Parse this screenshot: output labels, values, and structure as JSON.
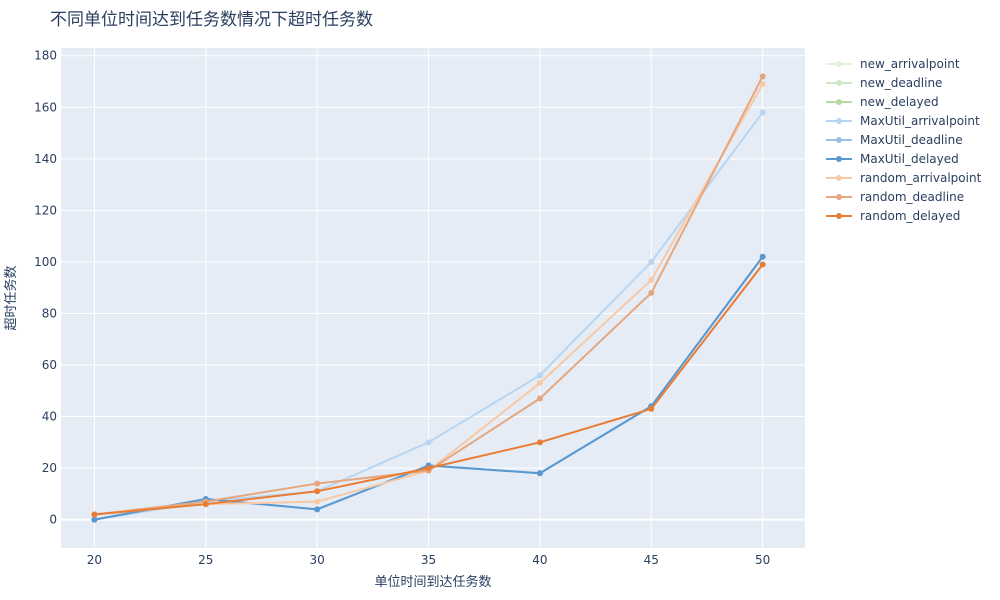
{
  "chart_data": {
    "type": "line",
    "title": "不同单位时间达到任务数情况下超时任务数",
    "xlabel": "单位时间到达任务数",
    "ylabel": "超时任务数",
    "x": [
      20,
      25,
      30,
      35,
      40,
      45,
      50
    ],
    "xticks": [
      "20",
      "25",
      "30",
      "35",
      "40",
      "45",
      "50"
    ],
    "yticks": [
      "0",
      "20",
      "40",
      "60",
      "80",
      "100",
      "120",
      "140",
      "160",
      "180"
    ],
    "xlim": [
      18.5,
      51.9
    ],
    "ylim": [
      -11,
      183
    ],
    "grid": true,
    "legend_position": "right",
    "plot_background": "#e5ecf6",
    "series": [
      {
        "name": "new_arrivalpoint",
        "color": "#e2f0dc",
        "values": null
      },
      {
        "name": "new_deadline",
        "color": "#d1e8c6",
        "values": null
      },
      {
        "name": "new_delayed",
        "color": "#b6dba3",
        "values": null
      },
      {
        "name": "MaxUtil_arrivalpoint",
        "color": "#b8d5f1",
        "values": [
          0,
          7,
          11,
          30,
          56,
          100,
          158
        ]
      },
      {
        "name": "MaxUtil_deadline",
        "color": "#9cc0e6",
        "values": [
          0,
          8,
          4,
          21,
          18,
          44,
          102
        ]
      },
      {
        "name": "MaxUtil_delayed",
        "color": "#5a98d0",
        "values": [
          0,
          8,
          4,
          21,
          18,
          44,
          102
        ]
      },
      {
        "name": "random_arrivalpoint",
        "color": "#f8c9a4",
        "values": [
          2,
          6,
          7,
          19,
          53,
          93,
          169
        ]
      },
      {
        "name": "random_deadline",
        "color": "#e6a77f",
        "values": [
          2,
          7,
          14,
          19,
          47,
          88,
          172
        ]
      },
      {
        "name": "random_delayed",
        "color": "#ea7c33",
        "values": [
          2,
          6,
          11,
          20,
          30,
          43,
          99
        ]
      }
    ]
  }
}
